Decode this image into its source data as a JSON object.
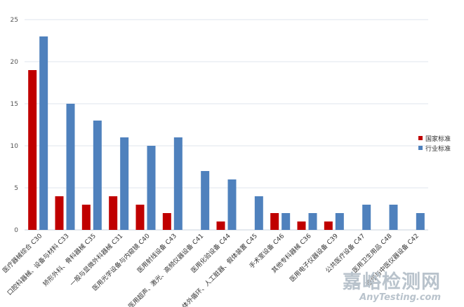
{
  "chart_data": {
    "type": "bar",
    "categories": [
      "医疗器械综合 C30",
      "口腔科器械、设备与材料 C33",
      "矫形外科、骨科器械 C35",
      "一般与显微外科器械 C31",
      "医用光学设备与内窥镜 C40",
      "医用射线设备 C43",
      "医用超声、激光、高频仪器设备 C41",
      "医用化验设备 C44",
      "体外循环、人工脏器、假体装置 C45",
      "手术室设备 C46",
      "其他专科器械 C36",
      "医用电子仪器设备 C39",
      "公共医疗设备 C47",
      "医用卫生用品 C48",
      "理疗与中医仪器设备 C42"
    ],
    "series": [
      {
        "name": "国家标准",
        "color": "#c00000",
        "values": [
          19,
          4,
          3,
          4,
          3,
          2,
          0,
          1,
          0,
          2,
          1,
          1,
          0,
          0,
          0
        ]
      },
      {
        "name": "行业标准",
        "color": "#4f81bd",
        "values": [
          23,
          15,
          13,
          11,
          10,
          11,
          7,
          6,
          4,
          2,
          2,
          2,
          3,
          3,
          2
        ]
      }
    ],
    "ylim": [
      0,
      25
    ],
    "yticks": [
      0,
      5,
      10,
      15,
      20,
      25
    ],
    "grid": true,
    "legend_position": "right",
    "title": "",
    "xlabel": "",
    "ylabel": ""
  },
  "watermark": {
    "text": "嘉峪检测网",
    "subtext": "AnyTesting.com"
  }
}
